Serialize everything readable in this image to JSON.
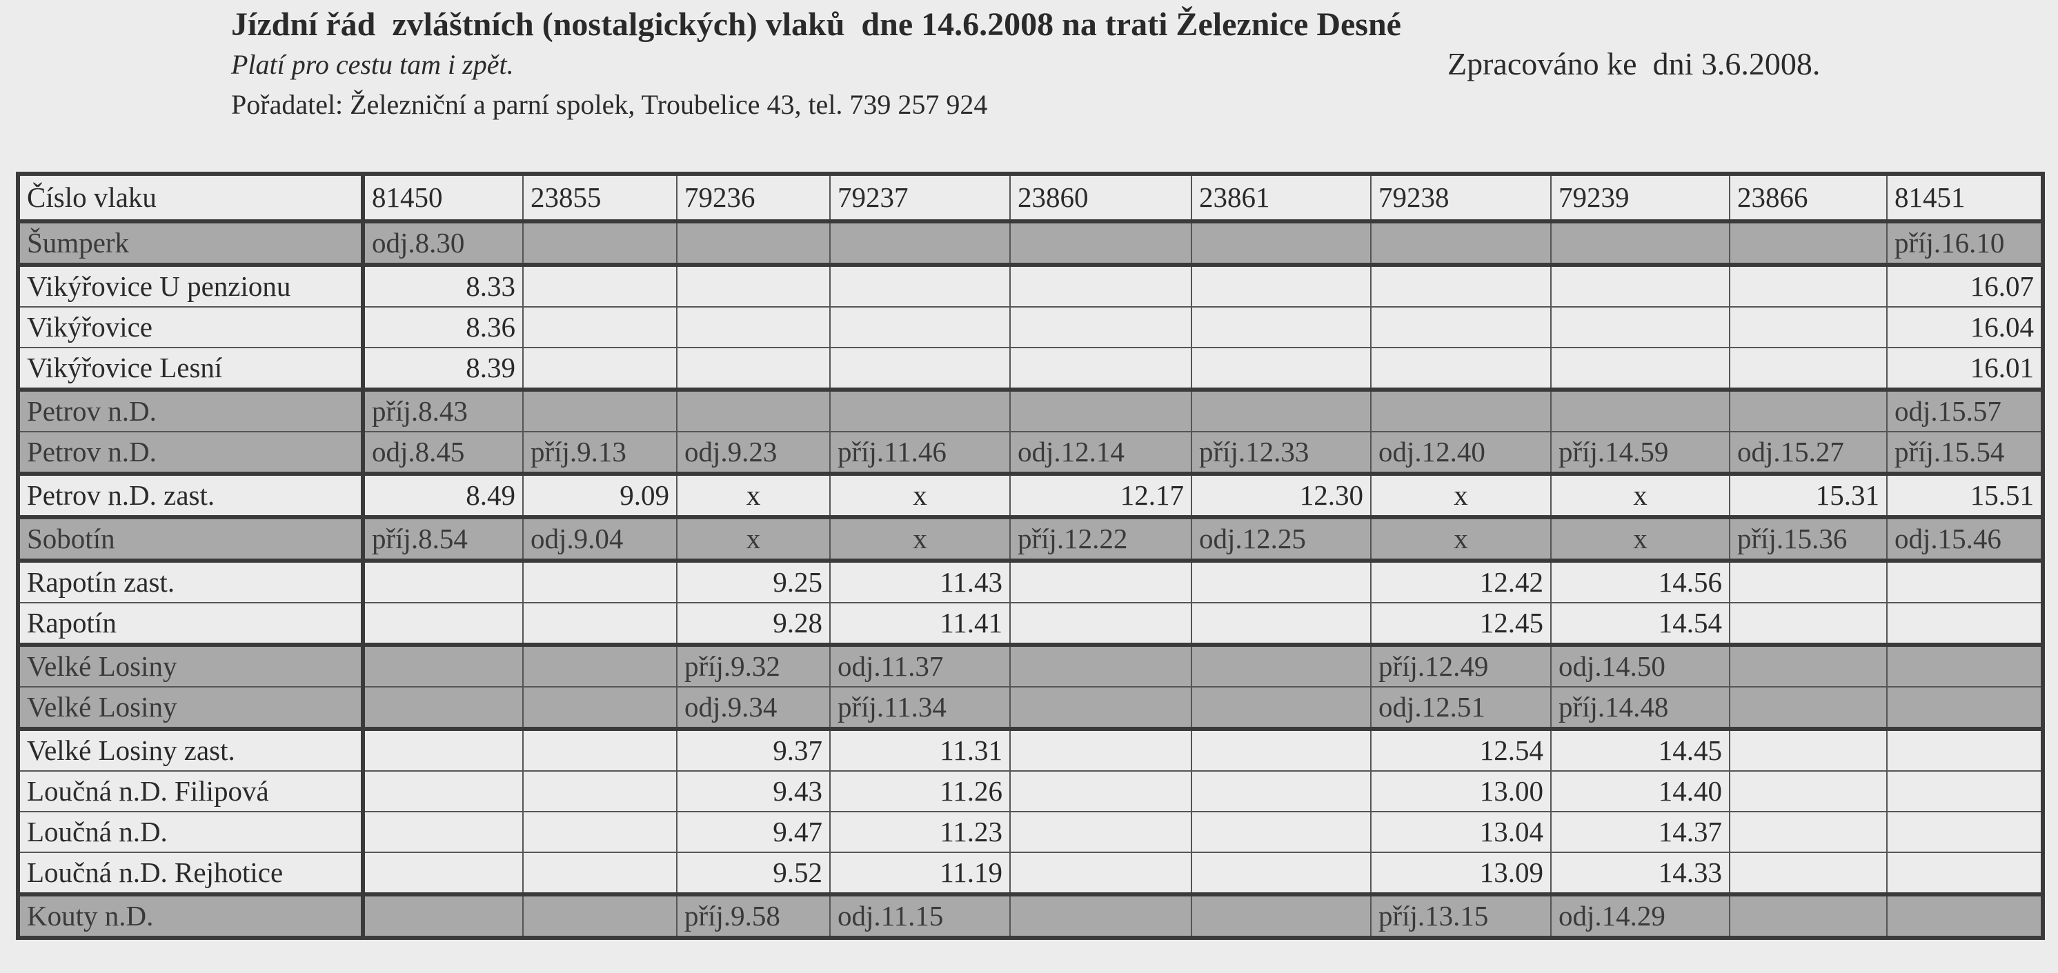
{
  "header": {
    "title": "Jízdní řád  zvláštních (nostalgických) vlaků  dne 14.6.2008 na trati Železnice Desné",
    "subtitle": "Platí pro cestu tam i zpět.",
    "processed": "Zpracováno ke  dni 3.6.2008.",
    "organizer": "Pořadatel: Železniční a parní spolek, Troubelice 43, tel. 739 257 924"
  },
  "table": {
    "header_label": "Číslo vlaku",
    "trains": [
      "81450",
      "23855",
      "79236",
      "79237",
      "23860",
      "23861",
      "79238",
      "79239",
      "23866",
      "81451"
    ],
    "shade_color": "#a9a9a9",
    "rows": [
      {
        "station": "Šumperk",
        "shaded": true,
        "cells": [
          "odj.8.30",
          "",
          "",
          "",
          "",
          "",
          "",
          "",
          "",
          "příj.16.10"
        ]
      },
      {
        "station": "Vikýřovice U penzionu",
        "shaded": false,
        "cells": [
          "8.33",
          "",
          "",
          "",
          "",
          "",
          "",
          "",
          "",
          "16.07"
        ]
      },
      {
        "station": "Vikýřovice",
        "shaded": false,
        "cells": [
          "8.36",
          "",
          "",
          "",
          "",
          "",
          "",
          "",
          "",
          "16.04"
        ]
      },
      {
        "station": "Vikýřovice Lesní",
        "shaded": false,
        "cells": [
          "8.39",
          "",
          "",
          "",
          "",
          "",
          "",
          "",
          "",
          "16.01"
        ]
      },
      {
        "station": "Petrov n.D.",
        "shaded": true,
        "cells": [
          "příj.8.43",
          "",
          "",
          "",
          "",
          "",
          "",
          "",
          "",
          "odj.15.57"
        ]
      },
      {
        "station": "Petrov n.D.",
        "shaded": true,
        "cells": [
          "odj.8.45",
          "příj.9.13",
          "odj.9.23",
          "příj.11.46",
          "odj.12.14",
          "příj.12.33",
          "odj.12.40",
          "příj.14.59",
          "odj.15.27",
          "příj.15.54"
        ]
      },
      {
        "station": "Petrov n.D. zast.",
        "shaded": false,
        "cells": [
          "8.49",
          "9.09",
          "x",
          "x",
          "12.17",
          "12.30",
          "x",
          "x",
          "15.31",
          "15.51"
        ]
      },
      {
        "station": "Sobotín",
        "shaded": true,
        "cells": [
          "příj.8.54",
          "odj.9.04",
          "x",
          "x",
          "příj.12.22",
          "odj.12.25",
          "x",
          "x",
          "příj.15.36",
          "odj.15.46"
        ]
      },
      {
        "station": "Rapotín zast.",
        "shaded": false,
        "cells": [
          "",
          "",
          "9.25",
          "11.43",
          "",
          "",
          "12.42",
          "14.56",
          "",
          ""
        ]
      },
      {
        "station": "Rapotín",
        "shaded": false,
        "cells": [
          "",
          "",
          "9.28",
          "11.41",
          "",
          "",
          "12.45",
          "14.54",
          "",
          ""
        ]
      },
      {
        "station": "Velké Losiny",
        "shaded": true,
        "cells": [
          "",
          "",
          "příj.9.32",
          "odj.11.37",
          "",
          "",
          "příj.12.49",
          "odj.14.50",
          "",
          ""
        ]
      },
      {
        "station": "Velké Losiny",
        "shaded": true,
        "cells": [
          "",
          "",
          "odj.9.34",
          "příj.11.34",
          "",
          "",
          "odj.12.51",
          "příj.14.48",
          "",
          ""
        ]
      },
      {
        "station": "Velké Losiny zast.",
        "shaded": false,
        "cells": [
          "",
          "",
          "9.37",
          "11.31",
          "",
          "",
          "12.54",
          "14.45",
          "",
          ""
        ]
      },
      {
        "station": "Loučná n.D. Filipová",
        "shaded": false,
        "cells": [
          "",
          "",
          "9.43",
          "11.26",
          "",
          "",
          "13.00",
          "14.40",
          "",
          ""
        ]
      },
      {
        "station": "Loučná n.D.",
        "shaded": false,
        "cells": [
          "",
          "",
          "9.47",
          "11.23",
          "",
          "",
          "13.04",
          "14.37",
          "",
          ""
        ]
      },
      {
        "station": "Loučná n.D. Rejhotice",
        "shaded": false,
        "cells": [
          "",
          "",
          "9.52",
          "11.19",
          "",
          "",
          "13.09",
          "14.33",
          "",
          ""
        ]
      },
      {
        "station": "Kouty n.D.",
        "shaded": true,
        "cells": [
          "",
          "",
          "příj.9.58",
          "odj.11.15",
          "",
          "",
          "příj.13.15",
          "odj.14.29",
          "",
          ""
        ]
      }
    ]
  }
}
